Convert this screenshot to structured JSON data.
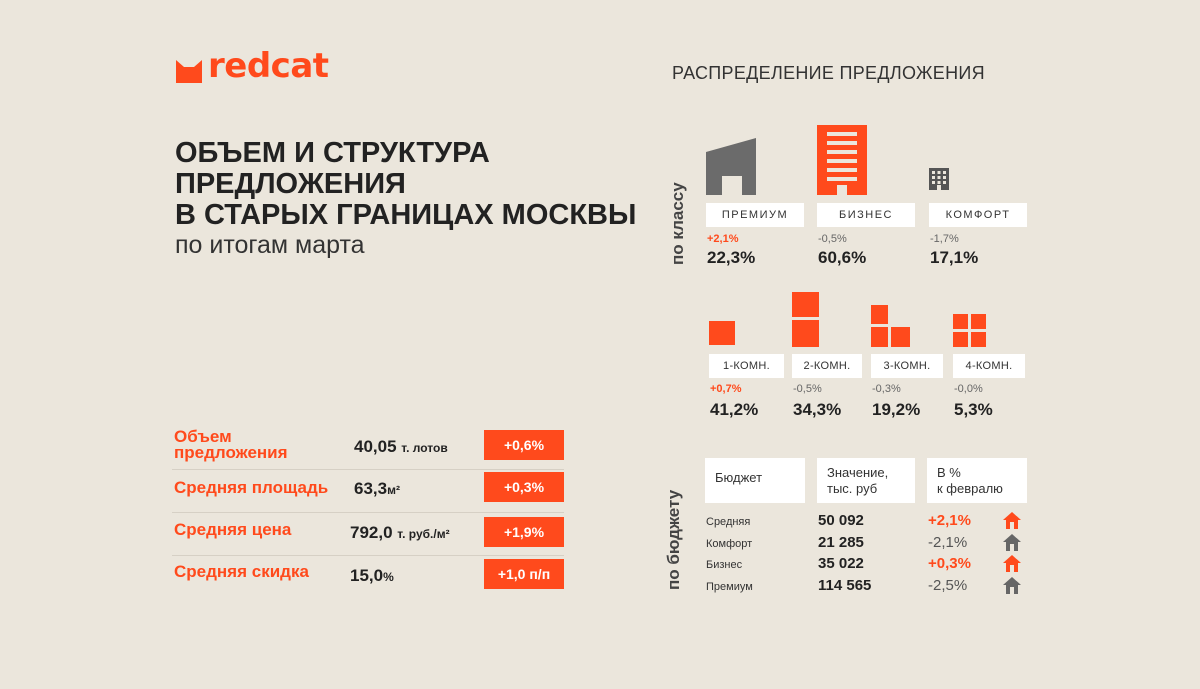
{
  "brand": {
    "name": "redcat",
    "accent": "#ff4a1c",
    "icon": "cat-ears-logo-icon"
  },
  "title": {
    "line1": "ОБЪЕМ И СТРУКТУРА",
    "line2": "ПРЕДЛОЖЕНИЯ",
    "line3": "В СТАРЫХ ГРАНИЦАХ МОСКВЫ",
    "subtitle": "по итогам марта"
  },
  "kpis": [
    {
      "label": "Объем предложения",
      "value": "40,05",
      "unit": "т. лотов",
      "change": "+0,6%"
    },
    {
      "label": "Средняя площадь",
      "value": "63,3",
      "unit": "м²",
      "change": "+0,3%"
    },
    {
      "label": "Средняя цена",
      "value": "792,0",
      "unit": "т. руб./м²",
      "change": "+1,9%"
    },
    {
      "label": "Средняя скидка",
      "value": "15,0",
      "unit": "%",
      "change": "+1,0 п/п"
    }
  ],
  "distribution": {
    "title": "РАСПРЕДЕЛЕНИЕ ПРЕДЛОЖЕНИЯ",
    "by_class_label": "по классу",
    "classes": [
      {
        "name": "ПРЕМИУМ",
        "delta": "+2,1%",
        "direction": "up",
        "share": "22,3%",
        "icon": "premium-building-icon"
      },
      {
        "name": "БИЗНЕС",
        "delta": "-0,5%",
        "direction": "down",
        "share": "60,6%",
        "icon": "business-building-icon"
      },
      {
        "name": "КОМФОРТ",
        "delta": "-1,7%",
        "direction": "down",
        "share": "17,1%",
        "icon": "comfort-building-icon"
      }
    ],
    "rooms": [
      {
        "name": "1-КОМН.",
        "delta": "+0,7%",
        "direction": "up",
        "share": "41,2%",
        "icon": "one-room-icon"
      },
      {
        "name": "2-КОМН.",
        "delta": "-0,5%",
        "direction": "down",
        "share": "34,3%",
        "icon": "two-room-icon"
      },
      {
        "name": "3-КОМН.",
        "delta": "-0,3%",
        "direction": "down",
        "share": "19,2%",
        "icon": "three-room-icon"
      },
      {
        "name": "4-КОМН.",
        "delta": "-0,0%",
        "direction": "down",
        "share": "5,3%",
        "icon": "four-room-icon"
      }
    ]
  },
  "budget": {
    "by_budget_label": "по бюджету",
    "headers": {
      "budget": "Бюджет",
      "value_l1": "Значение,",
      "value_l2": "тыс. руб",
      "change_l1": "В %",
      "change_l2": "к февралю"
    },
    "rows": [
      {
        "label": "Средняя",
        "value": "50 092",
        "change": "+2,1%",
        "direction": "up",
        "icon": "house-up-icon"
      },
      {
        "label": "Комфорт",
        "value": "21 285",
        "change": "-2,1%",
        "direction": "down",
        "icon": "house-down-icon"
      },
      {
        "label": "Бизнес",
        "value": "35 022",
        "change": "+0,3%",
        "direction": "up",
        "icon": "house-up-icon"
      },
      {
        "label": "Премиум",
        "value": "114 565",
        "change": "-2,5%",
        "direction": "down",
        "icon": "house-down-icon"
      }
    ]
  },
  "colors": {
    "background": "#ebe6dc",
    "accent": "#ff4a1c",
    "grey_icon": "#6b6b6b",
    "dark_text": "#222222"
  }
}
